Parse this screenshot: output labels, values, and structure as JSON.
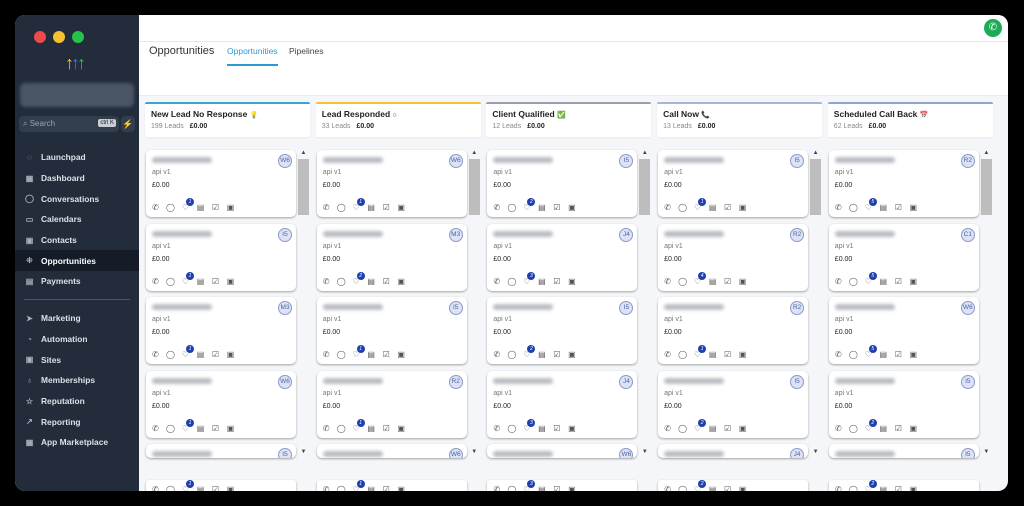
{
  "window": {
    "dots": [
      "#ed4a4a",
      "#f5c132",
      "#27c24c"
    ]
  },
  "sidebar": {
    "logo": "↑↑↑",
    "search_placeholder": "Search",
    "search_shortcut": "ctrl K",
    "items": [
      {
        "label": "Launchpad",
        "icon": "◌"
      },
      {
        "label": "Dashboard",
        "icon": "▦"
      },
      {
        "label": "Conversations",
        "icon": "◯"
      },
      {
        "label": "Calendars",
        "icon": "▭"
      },
      {
        "label": "Contacts",
        "icon": "▣"
      },
      {
        "label": "Opportunities",
        "icon": "⁜",
        "active": true
      },
      {
        "label": "Payments",
        "icon": "▤"
      }
    ],
    "items2": [
      {
        "label": "Marketing",
        "icon": "➤"
      },
      {
        "label": "Automation",
        "icon": "◔"
      },
      {
        "label": "Sites",
        "icon": "▣"
      },
      {
        "label": "Memberships",
        "icon": "♁"
      },
      {
        "label": "Reputation",
        "icon": "☆"
      },
      {
        "label": "Reporting",
        "icon": "↗"
      },
      {
        "label": "App Marketplace",
        "icon": "▦"
      }
    ]
  },
  "header": {
    "title": "Opportunities",
    "tabs": [
      "Opportunities",
      "Pipelines"
    ]
  },
  "stages": [
    {
      "name": "New Lead No Response",
      "icon": "💡",
      "leads": "199 Leads",
      "value": "£0.00",
      "color": "#3aa6d0",
      "cards": [
        [
          "W6",
          1
        ],
        [
          "I5",
          1
        ],
        [
          "M3",
          1
        ],
        [
          "W6",
          1
        ],
        [
          "I5",
          1
        ]
      ]
    },
    {
      "name": "Lead Responded",
      "icon": "○",
      "leads": "33 Leads",
      "value": "£0.00",
      "color": "#f1c232",
      "cards": [
        [
          "W6",
          1
        ],
        [
          "M3",
          2
        ],
        [
          "I5",
          1
        ],
        [
          "R2",
          1
        ],
        [
          "W6",
          1
        ]
      ]
    },
    {
      "name": "Client Qualified",
      "icon": "✅",
      "leads": "12 Leads",
      "value": "£0.00",
      "color": "#9aa0aa",
      "cards": [
        [
          "I5",
          2
        ],
        [
          "J4",
          3
        ],
        [
          "I5",
          2
        ],
        [
          "J4",
          3
        ],
        [
          "W6",
          3
        ]
      ]
    },
    {
      "name": "Call Now",
      "icon": "📞",
      "leads": "13 Leads",
      "value": "£0.00",
      "color": "#a7b5d8",
      "cards": [
        [
          "I5",
          1
        ],
        [
          "R2",
          4
        ],
        [
          "R2",
          1
        ],
        [
          "I5",
          2
        ],
        [
          "J4",
          2
        ]
      ]
    },
    {
      "name": "Scheduled Call Back",
      "icon": "📅",
      "leads": "62 Leads",
      "value": "£0.00",
      "color": "#8ea6cc",
      "cards": [
        [
          "R2",
          5
        ],
        [
          "C1",
          5
        ],
        [
          "W6",
          5
        ],
        [
          "I5",
          2
        ],
        [
          "I5",
          2
        ]
      ]
    }
  ],
  "card": {
    "source": "api v1",
    "amount": "£0.00",
    "actions": [
      "phone-icon",
      "chat-icon",
      "tag-icon",
      "note-icon",
      "task-icon",
      "calendar-icon"
    ]
  }
}
